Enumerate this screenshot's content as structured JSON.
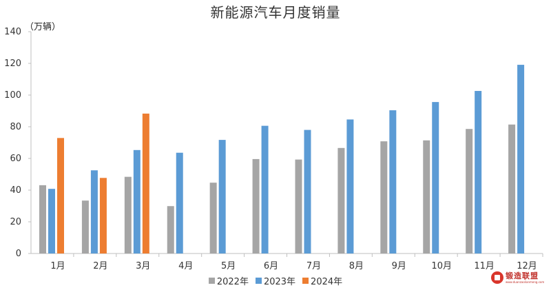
{
  "chart_data": {
    "type": "bar",
    "title": "新能源汽车月度销量",
    "ylabel": "（万辆）",
    "xlabel": "",
    "categories": [
      "1月",
      "2月",
      "3月",
      "4月",
      "5月",
      "6月",
      "7月",
      "8月",
      "9月",
      "10月",
      "11月",
      "12月"
    ],
    "yticks": [
      "0",
      "20",
      "40",
      "60",
      "80",
      "100",
      "120",
      "140"
    ],
    "ylim": [
      0,
      140
    ],
    "grid": false,
    "legend_position": "bottom",
    "series": [
      {
        "name": "2022年",
        "color": "#a5a5a5",
        "values": [
          43.1,
          33.4,
          48.4,
          29.9,
          44.7,
          59.6,
          59.3,
          66.6,
          70.8,
          71.4,
          78.6,
          81.4
        ]
      },
      {
        "name": "2023年",
        "color": "#5b9bd5",
        "values": [
          40.8,
          52.5,
          65.3,
          63.6,
          71.7,
          80.6,
          78.0,
          84.6,
          90.4,
          95.6,
          102.6,
          119.1
        ]
      },
      {
        "name": "2024年",
        "color": "#ed7d31",
        "values": [
          72.9,
          47.7,
          88.3,
          null,
          null,
          null,
          null,
          null,
          null,
          null,
          null,
          null
        ]
      }
    ]
  },
  "watermark": {
    "name": "锻造联盟",
    "url": "www.duanzaolianmeng.com"
  }
}
